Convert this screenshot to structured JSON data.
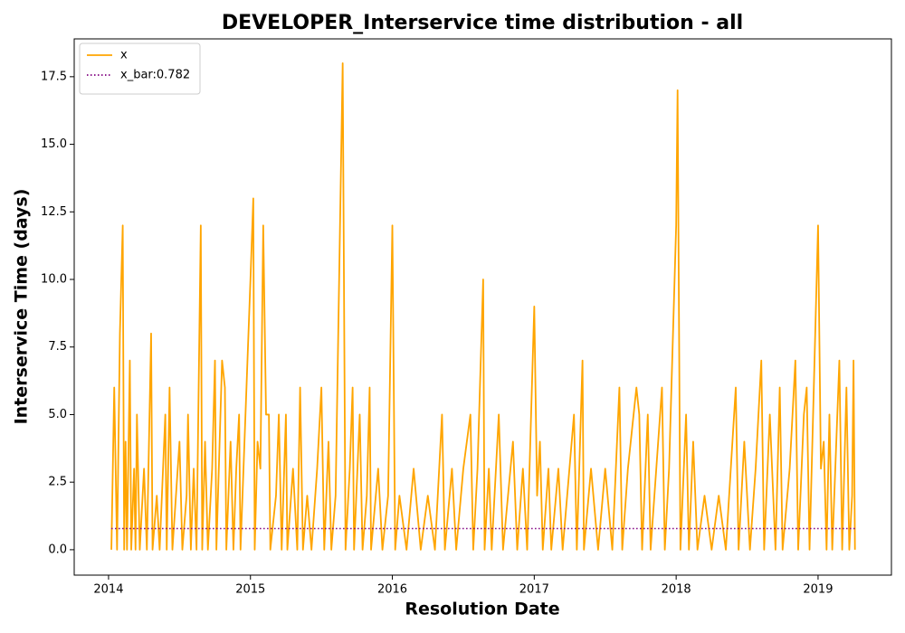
{
  "chart_data": {
    "type": "line",
    "title": "DEVELOPER_Interservice time distribution - all",
    "x_label": "Resolution Date",
    "y_label": "Interservice Time (days)",
    "xlim": [
      2013.758,
      2019.517
    ],
    "ylim": [
      -0.94,
      18.9
    ],
    "xticks": [
      2014,
      2015,
      2016,
      2017,
      2018,
      2019
    ],
    "yticks": [
      {
        "value": 0,
        "label": "0.0"
      },
      2.5,
      {
        "value": 5,
        "label": "5.0"
      },
      7.5,
      {
        "value": 10,
        "label": "10.0"
      },
      12.5,
      {
        "value": 15,
        "label": "15.0"
      },
      17.5
    ],
    "grid": false,
    "legend": "upper left",
    "series": [
      {
        "name": "x",
        "color": "#ffa500",
        "style": "solid",
        "x": [
          2014.02,
          2014.04,
          2014.06,
          2014.08,
          2014.1,
          2014.11,
          2014.12,
          2014.13,
          2014.15,
          2014.16,
          2014.18,
          2014.19,
          2014.2,
          2014.22,
          2014.25,
          2014.27,
          2014.3,
          2014.31,
          2014.34,
          2014.36,
          2014.4,
          2014.41,
          2014.43,
          2014.45,
          2014.5,
          2014.52,
          2014.55,
          2014.56,
          2014.58,
          2014.6,
          2014.62,
          2014.65,
          2014.66,
          2014.68,
          2014.7,
          2014.73,
          2014.75,
          2014.76,
          2014.8,
          2014.82,
          2014.83,
          2014.86,
          2014.88,
          2014.9,
          2014.92,
          2014.93,
          2015.0,
          2015.02,
          2015.03,
          2015.05,
          2015.07,
          2015.09,
          2015.11,
          2015.13,
          2015.14,
          2015.18,
          2015.2,
          2015.22,
          2015.25,
          2015.26,
          2015.3,
          2015.33,
          2015.35,
          2015.37,
          2015.4,
          2015.43,
          2015.47,
          2015.5,
          2015.52,
          2015.55,
          2015.57,
          2015.6,
          2015.65,
          2015.67,
          2015.7,
          2015.72,
          2015.73,
          2015.77,
          2015.79,
          2015.82,
          2015.84,
          2015.85,
          2015.9,
          2015.93,
          2015.97,
          2016.0,
          2016.02,
          2016.05,
          2016.1,
          2016.15,
          2016.2,
          2016.25,
          2016.3,
          2016.35,
          2016.37,
          2016.42,
          2016.45,
          2016.5,
          2016.55,
          2016.57,
          2016.6,
          2016.64,
          2016.65,
          2016.68,
          2016.7,
          2016.75,
          2016.78,
          2016.85,
          2016.88,
          2016.92,
          2016.95,
          2017.0,
          2017.02,
          2017.04,
          2017.06,
          2017.1,
          2017.12,
          2017.17,
          2017.2,
          2017.28,
          2017.3,
          2017.34,
          2017.35,
          2017.4,
          2017.45,
          2017.5,
          2017.55,
          2017.6,
          2017.62,
          2017.66,
          2017.72,
          2017.74,
          2017.76,
          2017.8,
          2017.82,
          2017.9,
          2017.92,
          2017.95,
          2018.0,
          2018.01,
          2018.03,
          2018.07,
          2018.09,
          2018.12,
          2018.15,
          2018.2,
          2018.25,
          2018.3,
          2018.35,
          2018.42,
          2018.44,
          2018.48,
          2018.52,
          2018.56,
          2018.6,
          2018.62,
          2018.66,
          2018.7,
          2018.73,
          2018.75,
          2018.8,
          2018.84,
          2018.86,
          2018.9,
          2018.92,
          2018.94,
          2019.0,
          2019.02,
          2019.04,
          2019.06,
          2019.08,
          2019.1,
          2019.15,
          2019.17,
          2019.2,
          2019.22,
          2019.24,
          2019.25,
          2019.26
        ],
        "values": [
          0,
          6,
          0,
          8,
          12,
          0,
          4,
          0,
          7,
          0,
          3,
          0,
          5,
          0,
          3,
          0,
          8,
          0,
          2,
          0,
          5,
          0,
          6,
          0,
          4,
          0,
          2,
          5,
          0,
          3,
          0,
          12,
          0,
          4,
          0,
          3,
          7,
          0,
          7,
          6,
          0,
          4,
          0,
          3,
          5,
          0,
          10,
          13,
          0,
          4,
          3,
          12,
          5,
          5,
          0,
          2,
          5,
          0,
          5,
          0,
          3,
          0,
          6,
          0,
          2,
          0,
          3,
          6,
          0,
          4,
          0,
          2,
          18,
          0,
          3,
          6,
          0,
          5,
          0,
          2,
          6,
          0,
          3,
          0,
          2,
          12,
          0,
          2,
          0,
          3,
          0,
          2,
          0,
          5,
          0,
          3,
          0,
          3,
          5,
          0,
          3,
          10,
          0,
          3,
          0,
          5,
          0,
          4,
          0,
          3,
          0,
          9,
          2,
          4,
          0,
          3,
          0,
          3,
          0,
          5,
          0,
          7,
          0,
          3,
          0,
          3,
          0,
          6,
          0,
          3,
          6,
          5,
          0,
          5,
          0,
          6,
          0,
          3,
          12,
          17,
          0,
          5,
          0,
          4,
          0,
          2,
          0,
          2,
          0,
          6,
          0,
          4,
          0,
          3,
          7,
          0,
          5,
          0,
          6,
          0,
          3,
          7,
          0,
          5,
          6,
          0,
          12,
          3,
          4,
          0,
          5,
          0,
          7,
          0,
          6,
          0,
          2,
          7,
          0
        ]
      },
      {
        "name": "x_bar:0.782",
        "color": "#800080",
        "style": "dotted",
        "x": [
          2014.02,
          2019.26
        ],
        "values": [
          0.782,
          0.782
        ]
      }
    ]
  }
}
